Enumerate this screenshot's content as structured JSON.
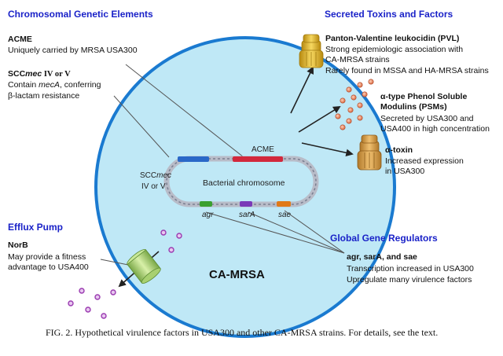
{
  "headings": {
    "chromosomal": "Chromosomal Genetic Elements",
    "toxins": "Secreted Toxins and Factors",
    "efflux": "Efflux Pump",
    "regulators": "Global Gene Regulators"
  },
  "acme": {
    "title": "ACME",
    "desc": "Uniquely carried by MRSA USA300"
  },
  "sccmec": {
    "title_bold": "SCC",
    "title_ital": "mec",
    "title_rest": " IV or V",
    "desc_line1_pre": "Contain ",
    "desc_line1_ital": "mecA",
    "desc_line1_post": ", conferring",
    "desc_line2": "β-lactam resistance"
  },
  "pvl": {
    "title": "Panton-Valentine leukocidin (PVL)",
    "desc_line1": "Strong epidemiologic association with",
    "desc_line2": "CA-MRSA strains",
    "desc_line3": "Rarely found in MSSA and HA-MRSA strains"
  },
  "psm": {
    "title_line1": "α-type Phenol Soluble",
    "title_line2": "Modulins (PSMs)",
    "desc_line1": "Secreted by USA300 and",
    "desc_line2": "USA400 in high concentration"
  },
  "alpha_toxin": {
    "title": "α-toxin",
    "desc_line1": "Increased expression",
    "desc_line2": "in USA300"
  },
  "norb": {
    "title": "NorB",
    "desc_line1": "May provide a fitness",
    "desc_line2": "advantage to USA400"
  },
  "regulators": {
    "title": "agr, sarA, and sae",
    "desc_line1": "Transcription increased in USA300",
    "desc_line2": "Upregulate many virulence factors"
  },
  "cell": {
    "label": "CA-MRSA",
    "chromosome_label": "Bacterial chromosome",
    "acme_label": "ACME",
    "sccmec_label_a": "SCC",
    "sccmec_label_b": "mec",
    "sccmec_label_c": "IV or V",
    "agr_label": "agr",
    "sara_label": "sarA",
    "sae_label": "sae"
  },
  "caption": "FIG. 2.  Hypothetical virulence factors in USA300 and other CA-MRSA strains. For details, see the text.",
  "colors": {
    "heading": "#1a22c8",
    "cell_fill": "#bfe8f6",
    "cell_stroke": "#1a7ad0",
    "acme": "#d2283c",
    "sccmec": "#2a68c8",
    "agr": "#3aa030",
    "sara": "#7a3ab8",
    "sae": "#e07a18",
    "toxin": "#e6b820",
    "psm": "#e07a5a",
    "pump": "#a8d070",
    "efflux_dot": "#9a3ab0"
  }
}
